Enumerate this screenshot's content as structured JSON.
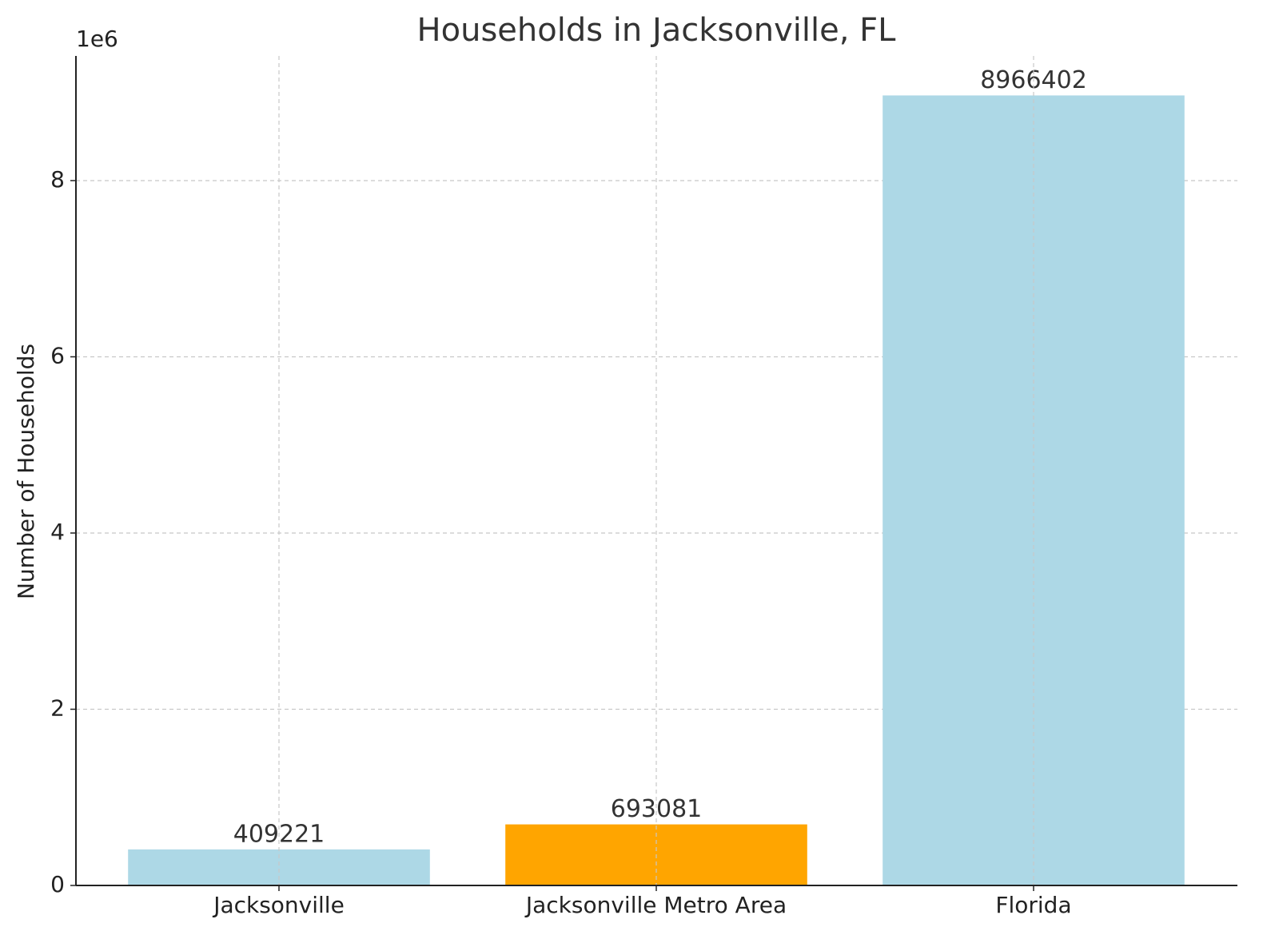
{
  "chart_data": {
    "type": "bar",
    "title": "Households in Jacksonville, FL",
    "ylabel": "Number of Households",
    "y_offset_label": "1e6",
    "categories": [
      "Jacksonville",
      "Jacksonville Metro Area",
      "Florida"
    ],
    "values": [
      409221,
      693081,
      8966402
    ],
    "colors": [
      "#add8e6",
      "#ffa500",
      "#add8e6"
    ],
    "ylim": [
      0,
      9414722
    ],
    "yticks": [
      0,
      {
        "value": 2000000,
        "label": "2"
      },
      {
        "value": 4000000,
        "label": "4"
      },
      {
        "value": 6000000,
        "label": "6"
      },
      {
        "value": 8000000,
        "label": "8"
      }
    ],
    "grid": true
  }
}
